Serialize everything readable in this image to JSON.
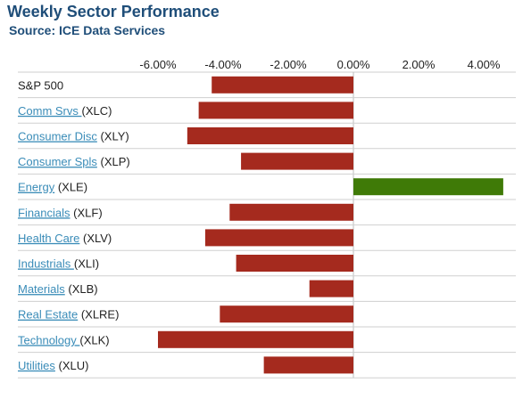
{
  "header": {
    "title": "Weekly Sector Performance",
    "subtitle": "Source: ICE Data Services"
  },
  "colors": {
    "negative": "#a52a1e",
    "positive": "#3f7a07",
    "link": "#3a8cb8",
    "grid": "#cfcfcf",
    "title": "#1f4e79"
  },
  "chart_data": {
    "type": "bar",
    "orientation": "horizontal",
    "x_ticks": [
      "-6.00%",
      "-4.00%",
      "-2.00%",
      "0.00%",
      "2.00%",
      "4.00%"
    ],
    "x_tick_values": [
      -6,
      -4,
      -2,
      0,
      2,
      4
    ],
    "xlim": [
      -6.0,
      4.5
    ],
    "categories": [
      {
        "name": "S&P 500",
        "ticker": "",
        "link": false
      },
      {
        "name": "Comm Srvs ",
        "ticker": "(XLC)",
        "link": true
      },
      {
        "name": "Consumer Disc",
        "ticker": " (XLY)",
        "link": true
      },
      {
        "name": "Consumer Spls",
        "ticker": " (XLP)",
        "link": true
      },
      {
        "name": "Energy",
        "ticker": " (XLE)",
        "link": true
      },
      {
        "name": "Financials",
        "ticker": " (XLF)",
        "link": true
      },
      {
        "name": "Health Care",
        "ticker": " (XLV)",
        "link": true
      },
      {
        "name": "Industrials ",
        "ticker": "(XLI)",
        "link": true
      },
      {
        "name": "Materials",
        "ticker": " (XLB)",
        "link": true
      },
      {
        "name": "Real Estate",
        "ticker": " (XLRE)",
        "link": true
      },
      {
        "name": "Technology ",
        "ticker": "(XLK)",
        "link": true
      },
      {
        "name": "Utilities",
        "ticker": " (XLU)",
        "link": true
      }
    ],
    "values": [
      -4.35,
      -4.75,
      -5.1,
      -3.45,
      4.6,
      -3.8,
      -4.55,
      -3.6,
      -1.35,
      -4.1,
      -6.0,
      -2.75
    ],
    "units": "%",
    "grid": "horizontal row separators",
    "legend": "none"
  }
}
